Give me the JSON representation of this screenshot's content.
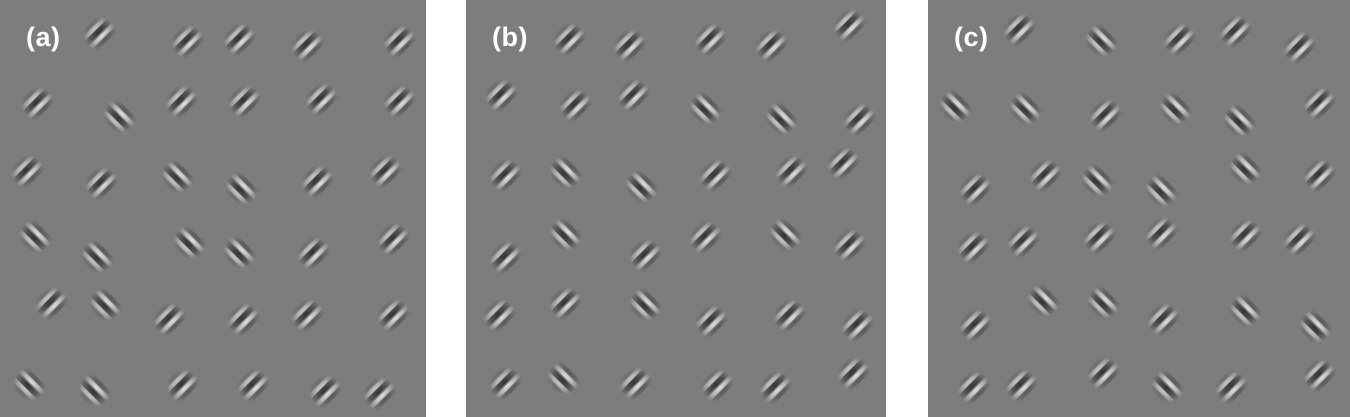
{
  "colors": {
    "panel_background": "#7d7d7d",
    "page_background": "#ffffff",
    "label_color": "#ffffff",
    "stripe_light": "#f0f0f0",
    "stripe_dark": "#2a2a2a"
  },
  "element_icon": "gabor-patch",
  "panels": [
    {
      "label": "(a)"
    },
    {
      "label": "(b)"
    },
    {
      "label": "(c)"
    }
  ]
}
